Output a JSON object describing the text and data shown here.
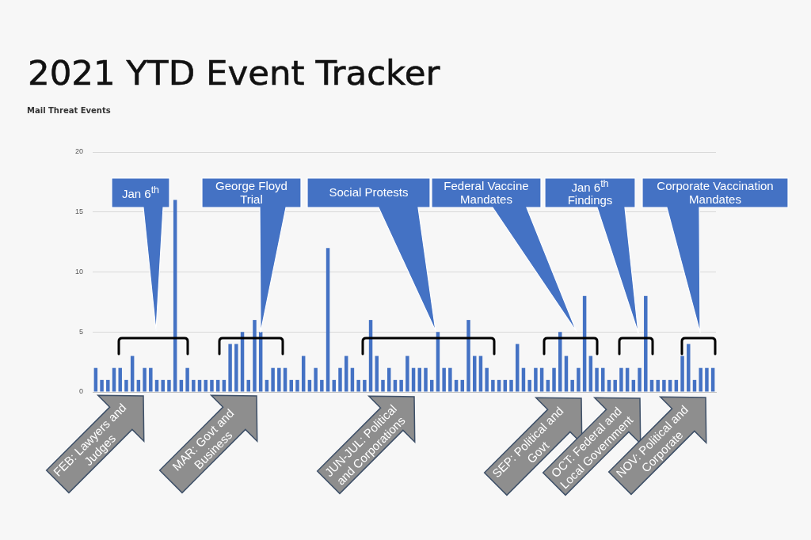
{
  "chart_data": {
    "type": "bar",
    "title": "2021 YTD Event Tracker",
    "subtitle": "Mail Threat Events",
    "categories": [
      null,
      null,
      null,
      null,
      null,
      null,
      null,
      null,
      null,
      null,
      null,
      null,
      null,
      null,
      null,
      null,
      null,
      null,
      null,
      null,
      null,
      null,
      null,
      null,
      null,
      null,
      null,
      null,
      null,
      null,
      null,
      null,
      null,
      null,
      null,
      null,
      null,
      null,
      null,
      null,
      null,
      null,
      null,
      null,
      null,
      null,
      null,
      null,
      null,
      null,
      null,
      null,
      null,
      null,
      null,
      null,
      null,
      null,
      null,
      null,
      null,
      null,
      null,
      null,
      null,
      null,
      null,
      null,
      null,
      null,
      null,
      null,
      null,
      null,
      null,
      null,
      null,
      null,
      null,
      null,
      null,
      null,
      null,
      null,
      null,
      null,
      null,
      null,
      null,
      null,
      null,
      null,
      null,
      null,
      null,
      null,
      null,
      null,
      null,
      null,
      null,
      null
    ],
    "values": [
      2,
      1,
      1,
      2,
      2,
      1,
      3,
      1,
      2,
      2,
      1,
      1,
      1,
      16,
      1,
      2,
      1,
      1,
      1,
      1,
      1,
      1,
      4,
      4,
      5,
      1,
      6,
      5,
      1,
      2,
      2,
      2,
      1,
      1,
      3,
      1,
      2,
      1,
      12,
      1,
      2,
      3,
      2,
      1,
      1,
      6,
      3,
      1,
      2,
      1,
      1,
      3,
      2,
      2,
      2,
      1,
      5,
      2,
      2,
      1,
      1,
      6,
      3,
      3,
      2,
      1,
      1,
      1,
      1,
      4,
      2,
      1,
      2,
      2,
      1,
      2,
      5,
      3,
      1,
      2,
      8,
      3,
      2,
      2,
      1,
      1,
      2,
      2,
      1,
      2,
      8,
      1,
      1,
      1,
      1,
      1,
      3,
      4,
      1,
      2,
      2,
      2
    ],
    "color": "#4472c4",
    "ylim": [
      0,
      20
    ],
    "yticks": [
      0,
      5,
      10,
      15,
      20
    ],
    "grid": "y",
    "tick_labels": "y",
    "annotations": [
      "Jan 6$^{th}$",
      "George Floyd Trial",
      "Social Protests",
      "Federal Vaccine Mandates",
      "Jan 6$^{th}$ Findings",
      "Corporate Vaccination Mandates",
      "FEB: Lawyers and Judges",
      "MAR: Govt and Business",
      "JUN-JUL: Political and Corporations",
      "SEP: Political and Govt",
      "OCT: Federal and Local Government",
      "NOV: Political and Corporate"
    ]
  }
}
